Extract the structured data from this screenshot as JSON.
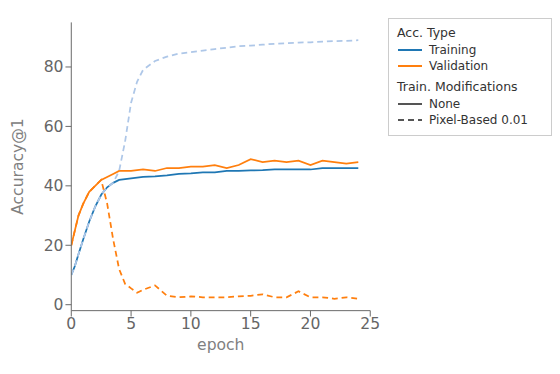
{
  "chart_data": {
    "type": "line",
    "xlabel": "epoch",
    "ylabel": "Accuracy@1",
    "xlim": [
      0,
      25
    ],
    "ylim": [
      -2,
      95
    ],
    "xticks": [
      0,
      5,
      10,
      15,
      20,
      25
    ],
    "yticks": [
      0,
      20,
      40,
      60,
      80
    ],
    "grid": false,
    "legend": "right",
    "legend_groups": [
      {
        "title": "Acc. Type",
        "items": [
          {
            "label": "Training",
            "color": "#1f77b4",
            "line_style": "solid"
          },
          {
            "label": "Validation",
            "color": "#ff7f0e",
            "line_style": "solid"
          }
        ]
      },
      {
        "title": "Train. Modifications",
        "items": [
          {
            "label": "None",
            "color": "#555555",
            "line_style": "solid"
          },
          {
            "label": "Pixel-Based 0.01",
            "color": "#555555",
            "line_style": "dashed"
          }
        ]
      }
    ],
    "series": [
      {
        "color": "#1f77b4",
        "line_style": "solid",
        "x": [
          0,
          0.3,
          0.6,
          1,
          1.5,
          2,
          2.5,
          3,
          3.5,
          4,
          5,
          6,
          7,
          8,
          9,
          10,
          11,
          12,
          13,
          14,
          15,
          16,
          17,
          18,
          19,
          20,
          21,
          22,
          23,
          24
        ],
        "values": [
          10,
          13,
          17,
          22,
          28,
          33,
          37,
          39.5,
          41,
          42,
          42.5,
          43,
          43.2,
          43.5,
          44,
          44.2,
          44.5,
          44.5,
          45,
          45,
          45.2,
          45.3,
          45.5,
          45.5,
          45.5,
          45.5,
          46,
          46,
          46,
          46
        ]
      },
      {
        "color": "#ff7f0e",
        "line_style": "solid",
        "x": [
          0,
          0.3,
          0.6,
          1,
          1.5,
          2,
          2.5,
          3,
          3.5,
          4,
          5,
          6,
          7,
          8,
          9,
          10,
          11,
          12,
          13,
          14,
          15,
          16,
          17,
          18,
          19,
          20,
          21,
          22,
          23,
          24
        ],
        "values": [
          20,
          25,
          30,
          34,
          38,
          40,
          42,
          43,
          44,
          45,
          45,
          45.5,
          45,
          46,
          46,
          46.5,
          46.5,
          47,
          46,
          47,
          49,
          48,
          48.5,
          48,
          48.5,
          47,
          48.5,
          48,
          47.5,
          48
        ]
      },
      {
        "color": "#aec7e8",
        "line_style": "dashed",
        "x": [
          0,
          0.3,
          0.6,
          1,
          1.5,
          2,
          2.5,
          3,
          3.5,
          4,
          4.5,
          5,
          5.5,
          6,
          7,
          8,
          9,
          10,
          11,
          12,
          13,
          14,
          15,
          16,
          17,
          18,
          19,
          20,
          21,
          22,
          23,
          24
        ],
        "values": [
          10,
          13,
          17,
          22,
          28,
          33,
          37,
          39.5,
          41,
          45,
          55,
          68,
          75,
          79,
          82,
          83.5,
          84.5,
          85,
          85.5,
          86,
          86.5,
          87,
          87.2,
          87.5,
          87.8,
          88,
          88.2,
          88.3,
          88.5,
          88.7,
          88.8,
          89
        ]
      },
      {
        "color": "#ff7f0e",
        "line_style": "dashed",
        "x": [
          0,
          0.3,
          0.6,
          1,
          1.5,
          2,
          2.5,
          3,
          3.5,
          4,
          4.5,
          5,
          5.5,
          6,
          7,
          8,
          9,
          10,
          11,
          12,
          13,
          14,
          15,
          16,
          17,
          18,
          19,
          20,
          21,
          22,
          23,
          24
        ],
        "values": [
          20,
          25,
          30,
          34,
          38,
          40,
          42,
          34,
          22,
          12,
          7,
          5.5,
          4,
          5,
          6.5,
          3,
          2.5,
          2.8,
          2.5,
          2.5,
          2.5,
          2.8,
          3,
          3.5,
          2.5,
          2.5,
          4.5,
          2.5,
          2.5,
          2,
          2.5,
          2
        ]
      }
    ]
  }
}
